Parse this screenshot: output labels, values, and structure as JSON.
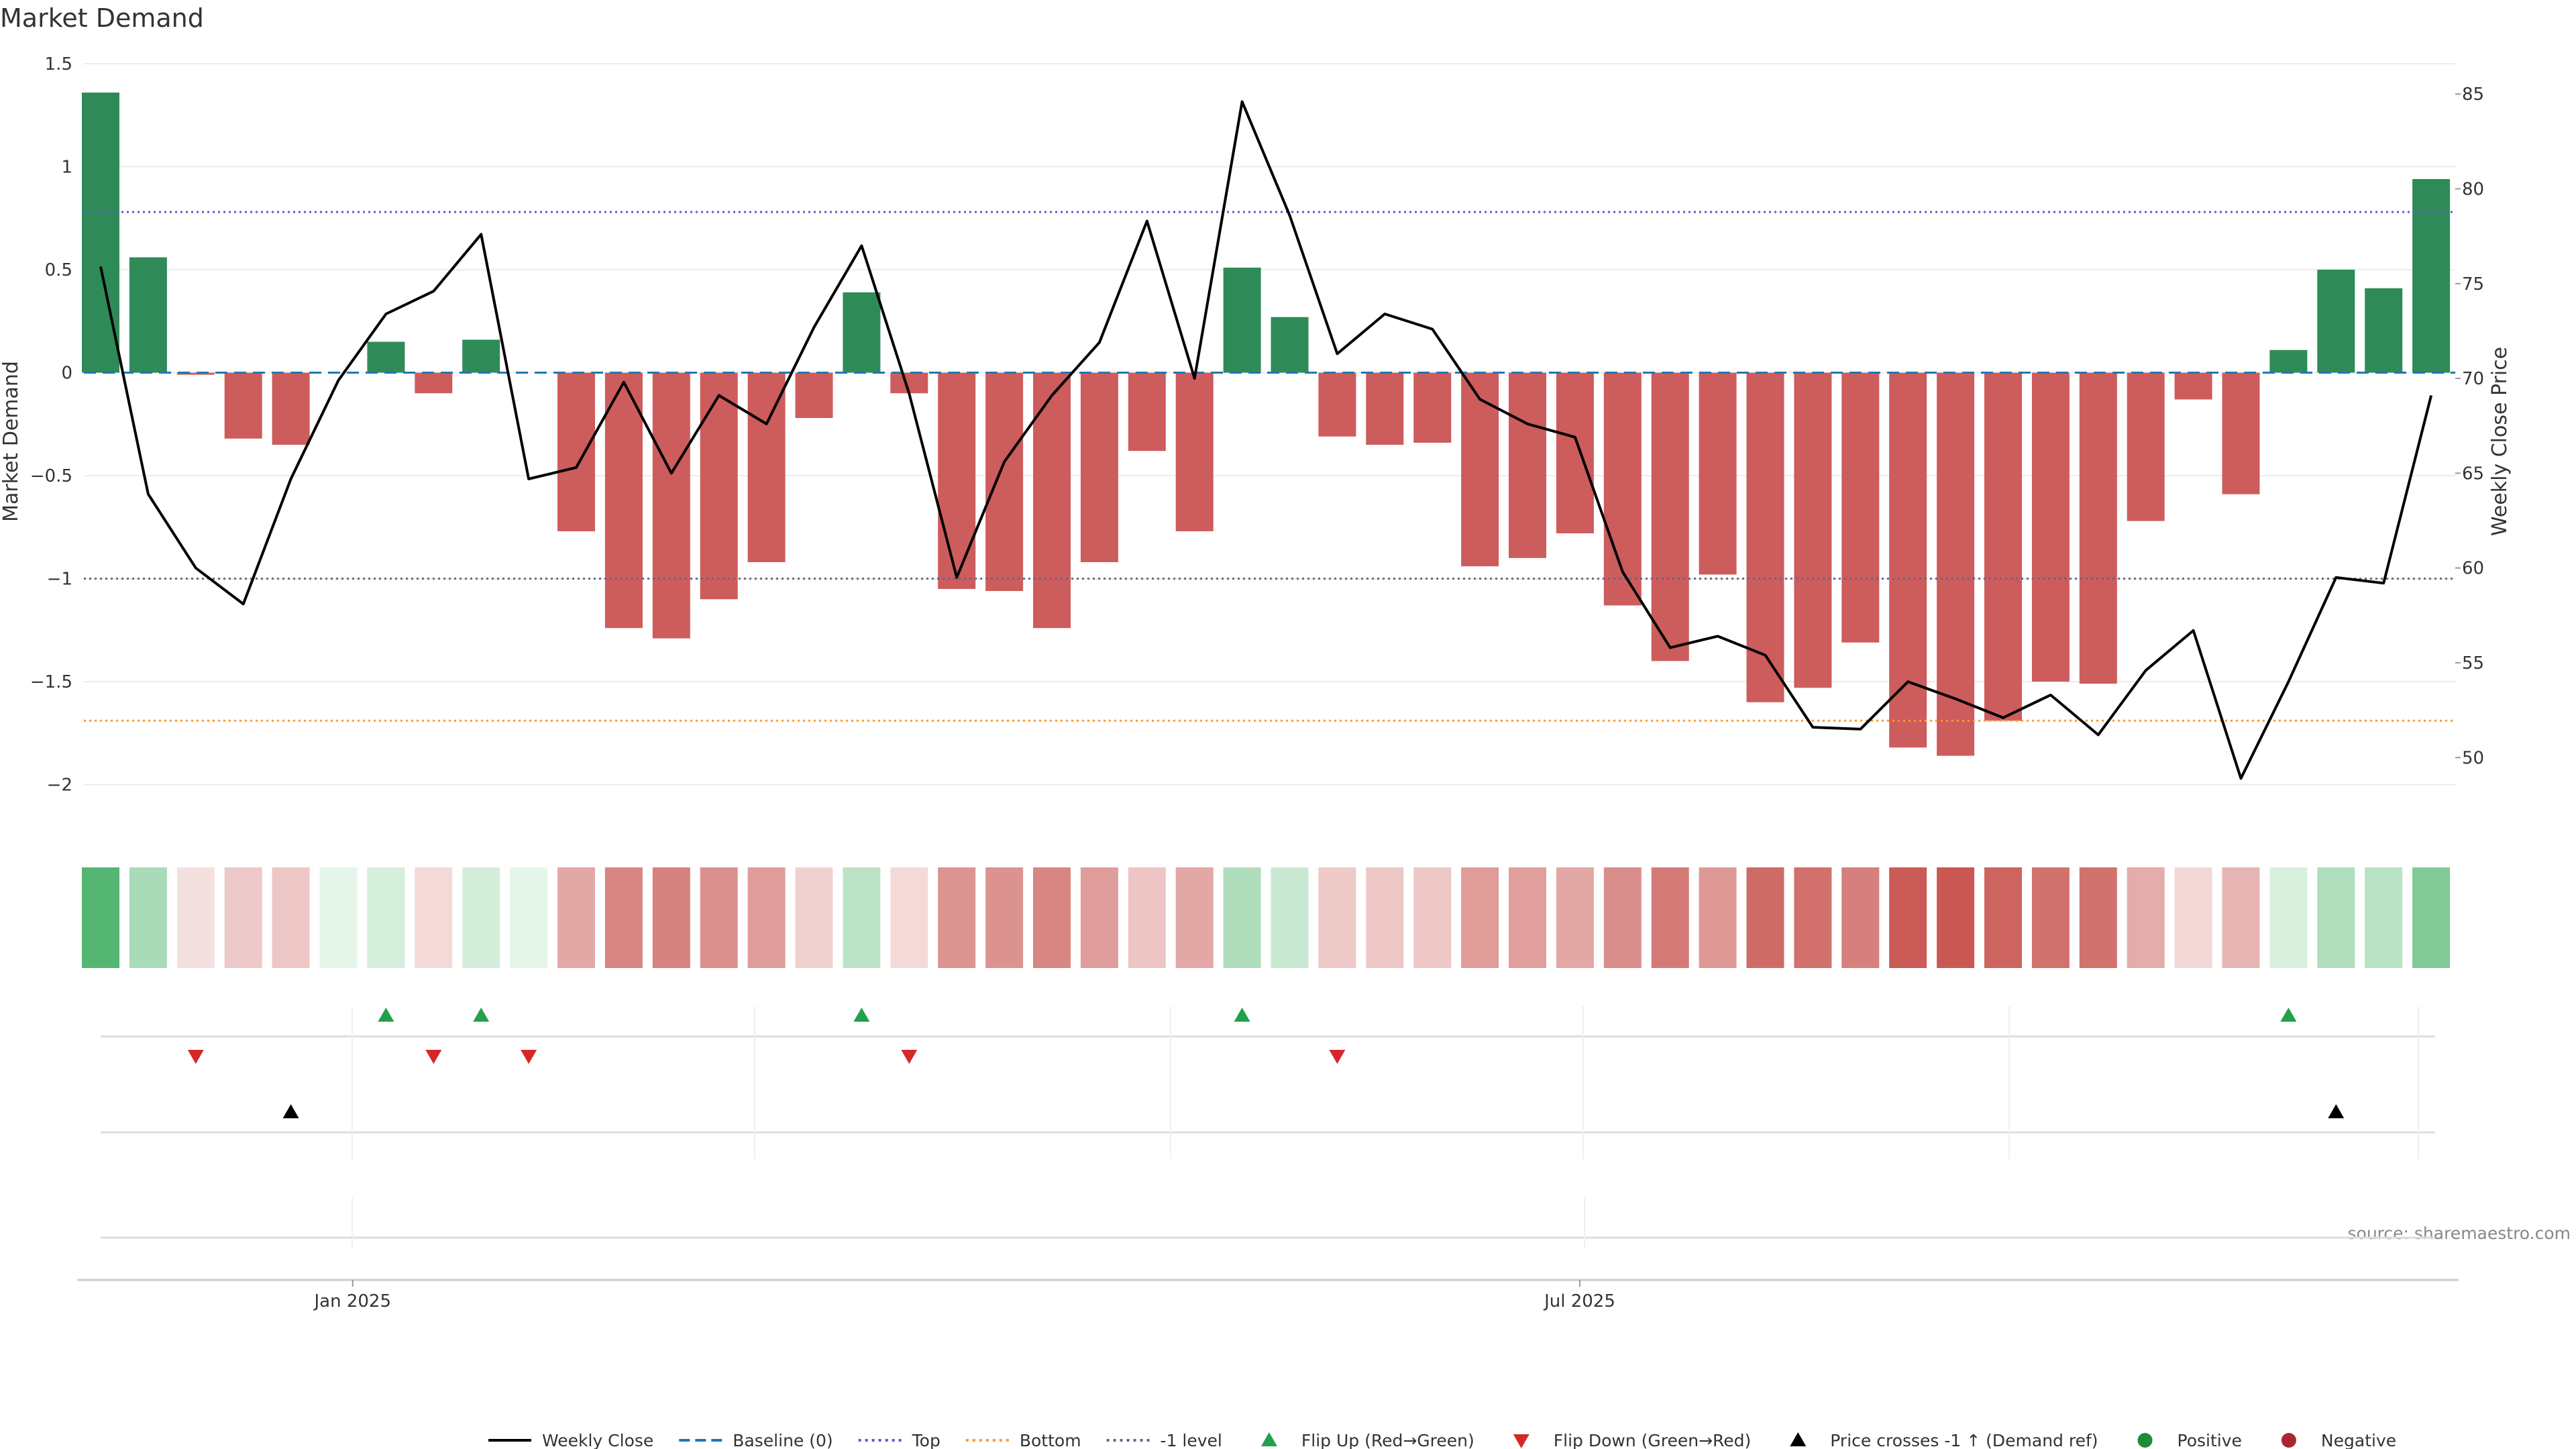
{
  "chart_data": {
    "type": "bar",
    "title": "Market Demand",
    "ylabel": "Market Demand",
    "y2label": "Weekly Close Price",
    "ylim": [
      -2.2,
      1.5
    ],
    "y2lim": [
      46.4,
      86.6
    ],
    "yticks": [
      1.5,
      1,
      0.5,
      0,
      -0.5,
      -1,
      -1.5,
      -2
    ],
    "y2ticks": [
      85,
      80,
      75,
      70,
      65,
      60,
      55,
      50
    ],
    "xlabels": [
      {
        "label": "Jan 2025",
        "index": 5.3
      },
      {
        "label": "Jul 2025",
        "index": 31.1
      }
    ],
    "levels": {
      "baseline": 0,
      "top": 0.78,
      "bottom": -1.69,
      "minus_one": -1
    },
    "demand": [
      1.36,
      0.56,
      -0.01,
      -0.32,
      -0.35,
      0.0,
      0.15,
      -0.1,
      0.16,
      0.0,
      -0.77,
      -1.24,
      -1.29,
      -1.1,
      -0.92,
      -0.22,
      0.39,
      -0.1,
      -1.05,
      -1.06,
      -1.24,
      -0.92,
      -0.38,
      -0.77,
      0.51,
      0.27,
      -0.31,
      -0.35,
      -0.34,
      -0.94,
      -0.9,
      -0.78,
      -1.13,
      -1.4,
      -0.98,
      -1.6,
      -1.53,
      -1.31,
      -1.82,
      -1.86,
      -1.69,
      -1.5,
      -1.51,
      -0.72,
      -0.13,
      -0.59,
      0.11,
      0.5,
      0.41,
      0.94
    ],
    "price": [
      75.9,
      63.9,
      60.0,
      58.1,
      64.7,
      69.9,
      73.4,
      74.6,
      77.6,
      64.7,
      65.3,
      69.8,
      65.0,
      69.1,
      67.6,
      72.7,
      77.0,
      69.2,
      59.5,
      65.6,
      69.1,
      71.9,
      78.3,
      70.0,
      84.6,
      78.6,
      71.3,
      73.4,
      72.6,
      68.9,
      67.6,
      66.9,
      59.8,
      55.8,
      56.4,
      55.4,
      51.6,
      51.5,
      54.0,
      53.1,
      52.1,
      53.3,
      51.2,
      54.6,
      56.7,
      48.9,
      54.0,
      59.5,
      59.2,
      69.1
    ],
    "flip_up_indices": [
      6,
      8,
      16,
      24,
      46
    ],
    "flip_down_indices": [
      2,
      7,
      9,
      17,
      26
    ],
    "price_cross_indices": [
      4,
      47
    ],
    "source": "source: sharemaestro.com",
    "legend": [
      {
        "label": "Weekly Close",
        "marker": "line",
        "color": "#000000"
      },
      {
        "label": "Baseline (0)",
        "marker": "dash",
        "color": "#1f77b4"
      },
      {
        "label": "Top",
        "marker": "dot",
        "color": "#5b5bd6"
      },
      {
        "label": "Bottom",
        "marker": "dot",
        "color": "#ff9933"
      },
      {
        "label": "-1 level",
        "marker": "dot",
        "color": "#666688"
      },
      {
        "label": "Flip Up (Red→Green)",
        "marker": "tri-up",
        "color": "#22a04a"
      },
      {
        "label": "Flip Down (Green→Red)",
        "marker": "tri-down",
        "color": "#d62728"
      },
      {
        "label": "Price crosses -1 ↑ (Demand ref)",
        "marker": "tri-up",
        "color": "#000000"
      },
      {
        "label": "Positive",
        "marker": "circle",
        "color": "#1f8a3a"
      },
      {
        "label": "Negative",
        "marker": "circle",
        "color": "#a8282f"
      }
    ],
    "colors": {
      "positive": "#2e8b57",
      "negative": "#cd5c5c",
      "price": "#000000"
    }
  }
}
